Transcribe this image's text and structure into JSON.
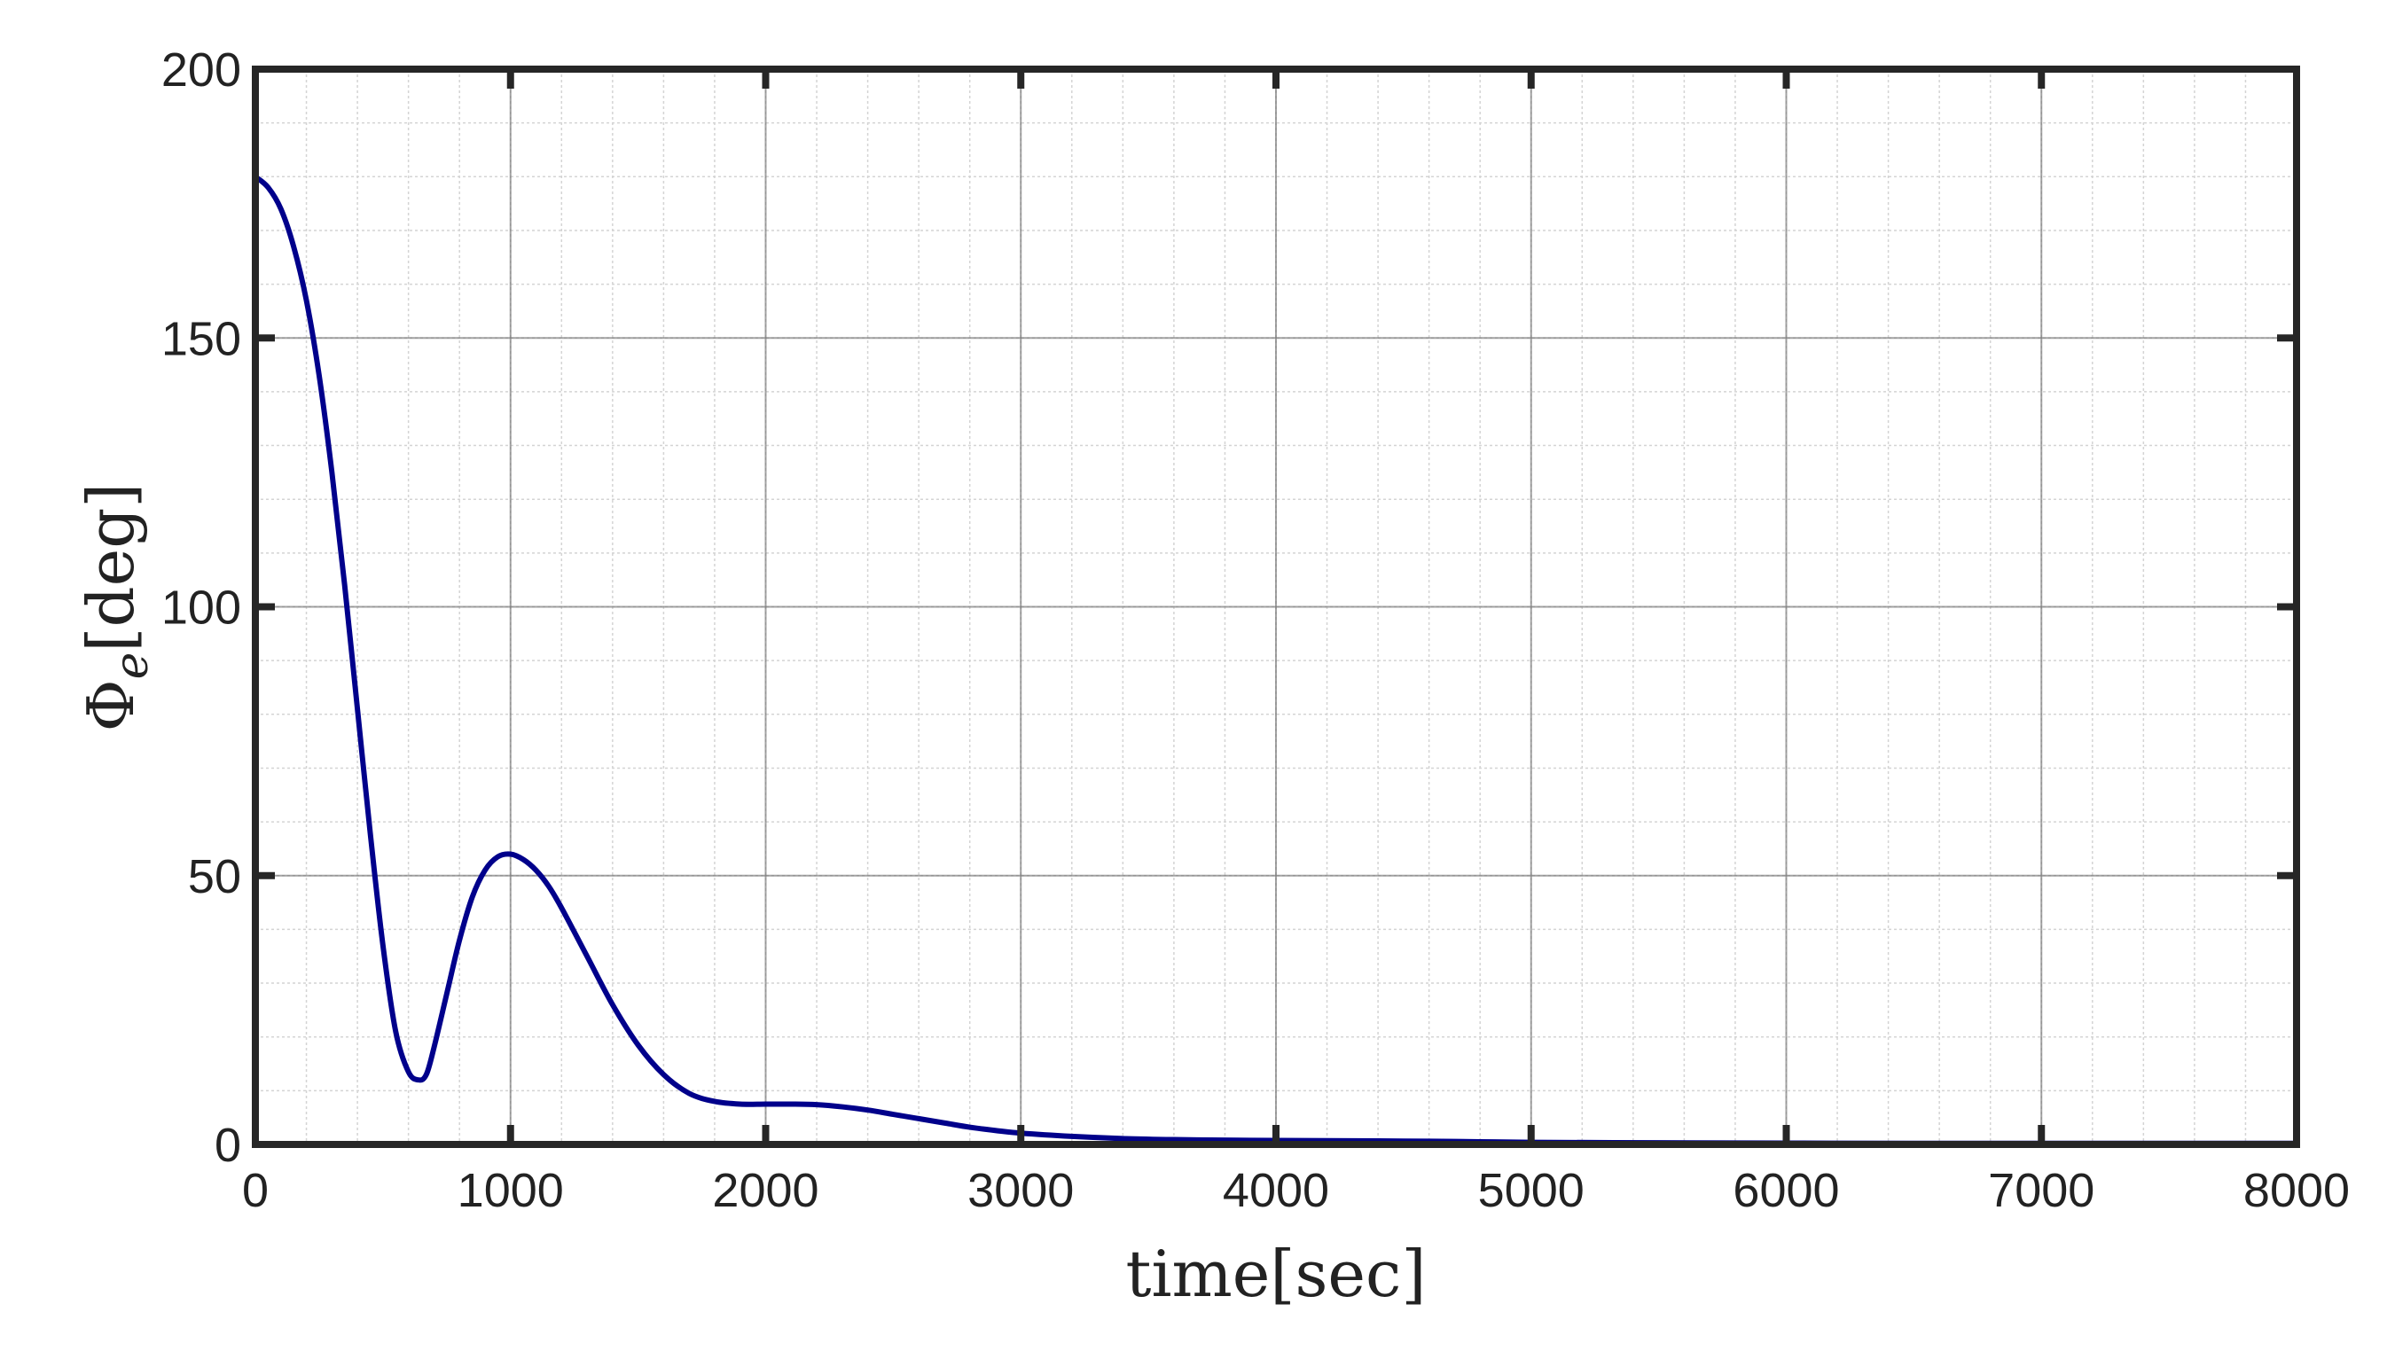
{
  "chart_data": {
    "type": "line",
    "title": "",
    "xlabel": "time[sec]",
    "ylabel_symbol": "Φ",
    "ylabel_subscript": "e",
    "ylabel_unit": "[deg]",
    "xlim": [
      0,
      8000
    ],
    "ylim": [
      0,
      200
    ],
    "xticks": [
      0,
      1000,
      2000,
      3000,
      4000,
      5000,
      6000,
      7000,
      8000
    ],
    "yticks": [
      0,
      50,
      100,
      150,
      200
    ],
    "xtick_labels": [
      "0",
      "1000",
      "2000",
      "3000",
      "4000",
      "5000",
      "6000",
      "7000",
      "8000"
    ],
    "ytick_labels": [
      "0",
      "50",
      "100",
      "150",
      "200"
    ],
    "grid": true,
    "minor_grid": true,
    "legend": "none",
    "colors": {
      "line": "#00008b",
      "axes": "#262626",
      "major_grid": "#7a7a7a",
      "minor_grid": "#d4d4d4"
    },
    "series": [
      {
        "x": [
          0,
          50,
          100,
          150,
          200,
          250,
          300,
          350,
          400,
          450,
          500,
          550,
          600,
          640,
          670,
          700,
          750,
          800,
          850,
          900,
          950,
          1000,
          1050,
          1100,
          1150,
          1200,
          1300,
          1400,
          1500,
          1600,
          1700,
          1800,
          1900,
          2000,
          2100,
          2200,
          2300,
          2400,
          2500,
          2600,
          2700,
          2800,
          2900,
          3000,
          3200,
          3400,
          3600,
          3800,
          4000,
          4200,
          4400,
          4600,
          4800,
          5000,
          5500,
          6000,
          6500,
          7000,
          7500,
          8000
        ],
        "y": [
          180,
          178,
          174,
          167,
          157,
          143,
          125,
          104,
          81,
          58,
          37,
          21,
          13.5,
          12,
          13,
          18,
          28,
          38,
          46,
          51,
          53.5,
          54,
          53,
          51,
          48,
          44,
          35,
          26,
          18.5,
          13,
          9.5,
          8,
          7.5,
          7.5,
          7.5,
          7.4,
          7,
          6.4,
          5.6,
          4.8,
          4,
          3.2,
          2.6,
          2.1,
          1.5,
          1.1,
          0.9,
          0.8,
          0.75,
          0.7,
          0.65,
          0.6,
          0.5,
          0.4,
          0.3,
          0.25,
          0.2,
          0.2,
          0.2,
          0.2
        ]
      }
    ]
  }
}
